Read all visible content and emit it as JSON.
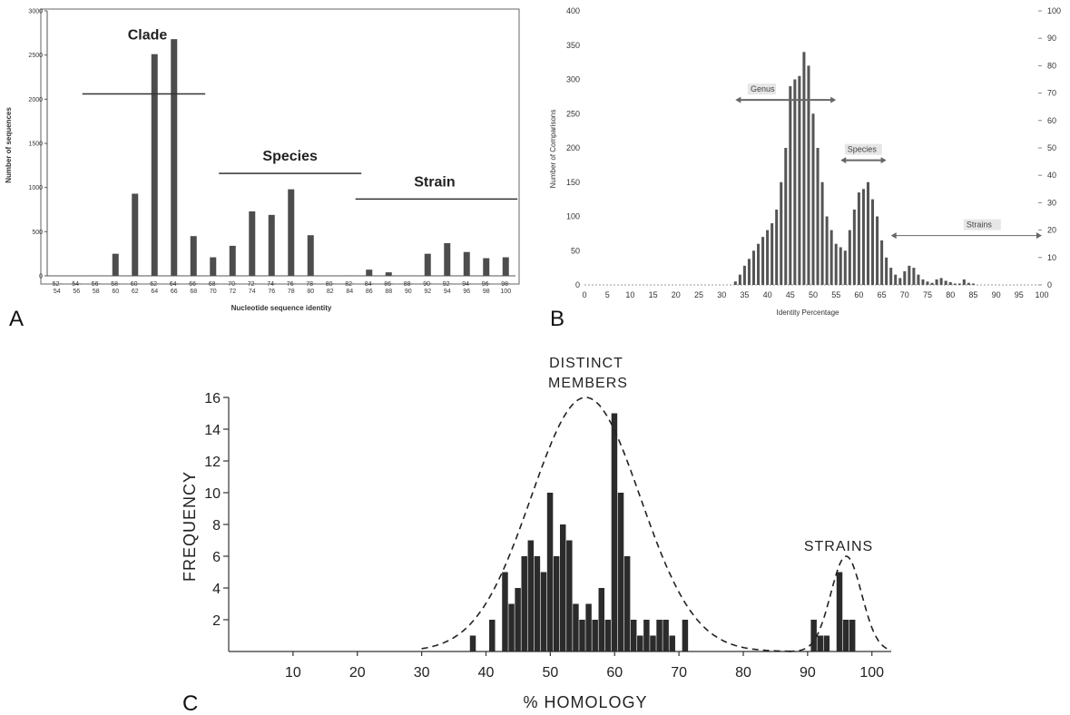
{
  "panels": [
    {
      "letter": "A",
      "ylabel": "Number of sequences",
      "xlabel": "Nucleotide sequence identity",
      "annotations": [
        "Clade",
        "Species",
        "Strain"
      ]
    },
    {
      "letter": "B",
      "ylabel": "Number of Comparisons",
      "xlabel": "Identity Percentage",
      "annotations": [
        "Genus",
        "Species",
        "Strains"
      ]
    },
    {
      "letter": "C",
      "ylabel": "FREQUENCY",
      "xlabel": "% HOMOLOGY",
      "annotations": [
        "DISTINCT",
        "MEMBERS",
        "STRAINS"
      ]
    }
  ],
  "colors": {
    "bar": "#4d4d4d",
    "bar_c": "#2b2b2b",
    "axis": "#555555",
    "arrow": "#666666"
  },
  "chart_data": [
    {
      "type": "bar",
      "xlabel": "Nucleotide sequence identity",
      "ylabel": "Number of sequences",
      "ylim": [
        0,
        3000
      ],
      "yticks": [
        0,
        500,
        1000,
        1500,
        2000,
        2500,
        3000
      ],
      "categories": [
        "52-54",
        "54-56",
        "56-58",
        "58-60",
        "60-62",
        "62-64",
        "64-66",
        "66-68",
        "68-70",
        "70-72",
        "72-74",
        "74-76",
        "76-78",
        "78-80",
        "80-82",
        "82-84",
        "84-86",
        "86-88",
        "88-90",
        "90-92",
        "92-94",
        "94-96",
        "96-98",
        "98-100"
      ],
      "category_lines": [
        [
          "52-",
          "54"
        ],
        [
          "54-",
          "56"
        ],
        [
          "56-",
          "58"
        ],
        [
          "58-",
          "60"
        ],
        [
          "60-",
          "62"
        ],
        [
          "62-",
          "64"
        ],
        [
          "64-",
          "66"
        ],
        [
          "66-",
          "68"
        ],
        [
          "68-",
          "70"
        ],
        [
          "70-",
          "72"
        ],
        [
          "72-",
          "74"
        ],
        [
          "74-",
          "76"
        ],
        [
          "76-",
          "78"
        ],
        [
          "78-",
          "80"
        ],
        [
          "80-",
          "82"
        ],
        [
          "82-",
          "84"
        ],
        [
          "84-",
          "86"
        ],
        [
          "86-",
          "88"
        ],
        [
          "88-",
          "90"
        ],
        [
          "90-",
          "92"
        ],
        [
          "92-",
          "94"
        ],
        [
          "94-",
          "96"
        ],
        [
          "96-",
          "98"
        ],
        [
          "98-",
          "100"
        ]
      ],
      "values": [
        0,
        0,
        5,
        250,
        930,
        2510,
        2680,
        450,
        210,
        340,
        730,
        690,
        980,
        460,
        0,
        5,
        70,
        40,
        5,
        250,
        370,
        270,
        200,
        210
      ],
      "grid": false,
      "annotations": [
        {
          "text": "Clade",
          "from_category": "56-58",
          "to_category": "66-68",
          "y": 2060
        },
        {
          "text": "Species",
          "from_category": "70-72",
          "to_category": "82-84",
          "y": 1160
        },
        {
          "text": "Strain",
          "from_category": "84-86",
          "to_category": "98-100",
          "y": 870
        }
      ]
    },
    {
      "type": "bar",
      "xlabel": "Identity Percentage",
      "ylabel": "Number of Comparisons",
      "xlim": [
        0,
        100
      ],
      "xticks": [
        0,
        5,
        10,
        15,
        20,
        25,
        30,
        35,
        40,
        45,
        50,
        55,
        60,
        65,
        70,
        75,
        80,
        85,
        90,
        95,
        100
      ],
      "ylim": [
        0,
        400
      ],
      "yticks": [
        0,
        50,
        100,
        150,
        200,
        250,
        300,
        350,
        400
      ],
      "y2lim": [
        0,
        100
      ],
      "y2ticks": [
        0,
        10,
        20,
        30,
        40,
        50,
        60,
        70,
        80,
        90,
        100
      ],
      "x": [
        33,
        34,
        35,
        36,
        37,
        38,
        39,
        40,
        41,
        42,
        43,
        44,
        45,
        46,
        47,
        48,
        49,
        50,
        51,
        52,
        53,
        54,
        55,
        56,
        57,
        58,
        59,
        60,
        61,
        62,
        63,
        64,
        65,
        66,
        67,
        68,
        69,
        70,
        71,
        72,
        73,
        74,
        75,
        76,
        77,
        78,
        79,
        80,
        81,
        82,
        83,
        84,
        85
      ],
      "values": [
        5,
        15,
        28,
        38,
        50,
        60,
        70,
        80,
        90,
        110,
        150,
        200,
        290,
        300,
        305,
        340,
        320,
        250,
        200,
        150,
        100,
        80,
        60,
        55,
        50,
        80,
        110,
        135,
        140,
        150,
        125,
        100,
        65,
        40,
        25,
        15,
        10,
        20,
        28,
        25,
        15,
        8,
        5,
        3,
        8,
        10,
        6,
        4,
        2,
        2,
        8,
        3,
        2
      ],
      "grid": false,
      "annotations": [
        {
          "text": "Genus",
          "x_from": 33,
          "x_to": 55,
          "y": 270
        },
        {
          "text": "Species",
          "x_from": 56,
          "x_to": 66,
          "y": 182
        },
        {
          "text": "Strains",
          "x_from": 67,
          "x_to": 100,
          "y": 72
        }
      ]
    },
    {
      "type": "bar",
      "xlabel": "% HOMOLOGY",
      "ylabel": "FREQUENCY",
      "xlim": [
        0,
        103
      ],
      "xticks": [
        10,
        20,
        30,
        40,
        50,
        60,
        70,
        80,
        90,
        100
      ],
      "ylim": [
        0,
        16
      ],
      "yticks": [
        2,
        4,
        6,
        8,
        10,
        12,
        14,
        16
      ],
      "x": [
        38,
        41,
        43,
        44,
        45,
        46,
        47,
        48,
        49,
        50,
        51,
        52,
        53,
        54,
        55,
        56,
        57,
        58,
        59,
        60,
        61,
        62,
        63,
        64,
        65,
        66,
        67,
        68,
        69,
        71,
        91,
        92,
        93,
        95,
        96,
        97
      ],
      "values": [
        1,
        2,
        5,
        3,
        4,
        6,
        7,
        6,
        5,
        10,
        6,
        8,
        7,
        3,
        2,
        3,
        2,
        4,
        2,
        15,
        10,
        6,
        2,
        1,
        2,
        1,
        2,
        2,
        1,
        2,
        2,
        1,
        1,
        5,
        2,
        2
      ],
      "grid": false,
      "curves": [
        {
          "name": "DISTINCT MEMBERS",
          "type": "gaussian",
          "mean": 55.5,
          "sd": 8.5,
          "peak": 16,
          "x_range": [
            30,
            88
          ]
        },
        {
          "name": "STRAINS",
          "type": "gaussian",
          "mean": 96,
          "sd": 2.4,
          "peak": 6,
          "x_range": [
            87,
            103
          ]
        }
      ],
      "annotations": [
        {
          "text": "DISTINCT MEMBERS",
          "x": 57,
          "y": 16.5
        },
        {
          "text": "STRAINS",
          "x": 96,
          "y": 6.5
        }
      ]
    }
  ]
}
